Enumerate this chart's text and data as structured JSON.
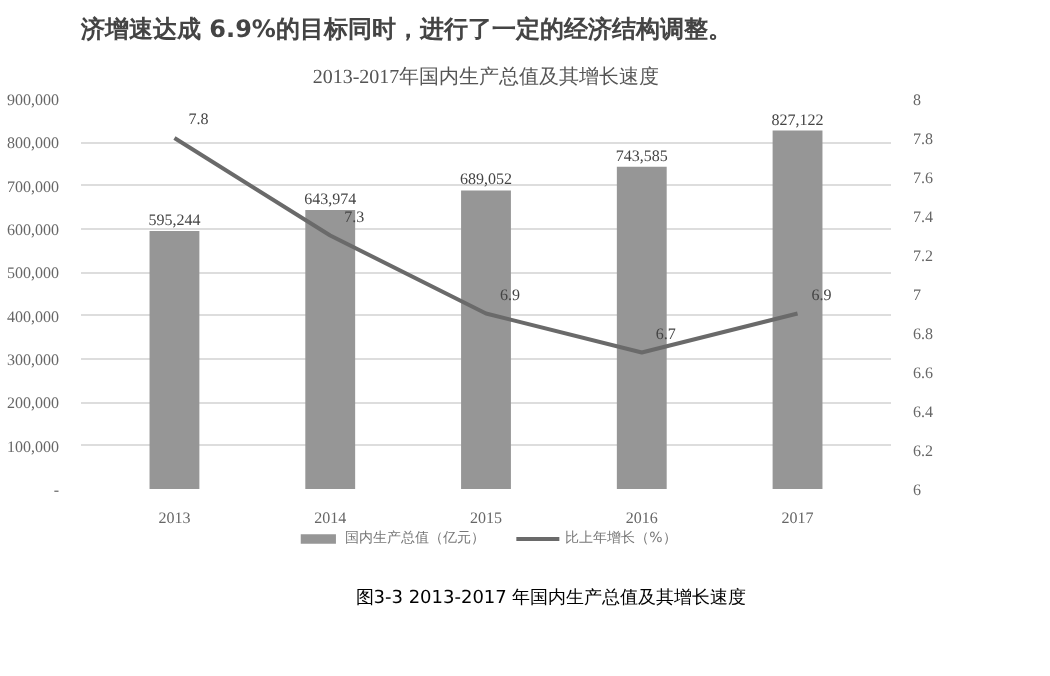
{
  "chart_data": {
    "type": "bar",
    "title": "2013-2017年国内生产总值及其增长速度",
    "categories": [
      "2013",
      "2014",
      "2015",
      "2016",
      "2017"
    ],
    "series": [
      {
        "name": "国内生产总值（亿元）",
        "color": "#969696",
        "values": [
          595244,
          643974,
          689052,
          743585,
          827122
        ],
        "value_labels": [
          "595,244",
          "643,974",
          "689,052",
          "743,585",
          "827,122"
        ]
      },
      {
        "name": "比上年增长（%）",
        "type": "line",
        "axis": "y2",
        "color": "#6a6a6a",
        "values": [
          7.8,
          7.3,
          6.9,
          6.7,
          6.9
        ],
        "value_labels": [
          "7.8",
          "7.3",
          "6.9",
          "6.7",
          "6.9"
        ]
      }
    ],
    "ylim": [
      0,
      900000
    ],
    "yticks": [
      {
        "value": 0,
        "label": "-"
      },
      {
        "value": 100000,
        "label": "100,000"
      },
      {
        "value": 200000,
        "label": "200,000"
      },
      {
        "value": 300000,
        "label": "300,000"
      },
      {
        "value": 400000,
        "label": "400,000"
      },
      {
        "value": 500000,
        "label": "500,000"
      },
      {
        "value": 600000,
        "label": "600,000"
      },
      {
        "value": 700000,
        "label": "700,000"
      },
      {
        "value": 800000,
        "label": "800,000"
      },
      {
        "value": 900000,
        "label": "900,000"
      }
    ],
    "y2lim": [
      6,
      8
    ],
    "y2ticks": [
      6,
      6.2,
      6.4,
      6.6,
      6.8,
      7,
      7.2,
      7.4,
      7.6,
      7.8,
      8
    ],
    "grid": "y",
    "legend": "bottom",
    "marker": "none",
    "line_style": "solid",
    "annotations": [
      "济增速达成 6.9%的目标同时，进行了一定的经济结构调整。",
      "图3-3 2013-2017 年国内生产总值及其增长速度"
    ]
  }
}
